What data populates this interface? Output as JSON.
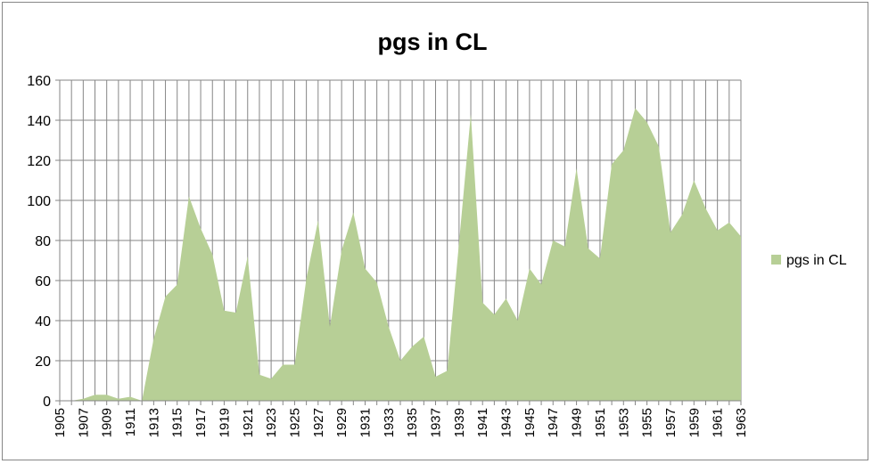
{
  "chart_data": {
    "type": "area",
    "title": "pgs in CL",
    "xlabel": "",
    "ylabel": "",
    "ylim": [
      0,
      160
    ],
    "yticks": [
      0,
      20,
      40,
      60,
      80,
      100,
      120,
      140,
      160
    ],
    "grid": true,
    "legend": "right",
    "x": [
      1905,
      1906,
      1907,
      1908,
      1909,
      1910,
      1911,
      1912,
      1913,
      1914,
      1915,
      1916,
      1917,
      1918,
      1919,
      1920,
      1921,
      1922,
      1923,
      1924,
      1925,
      1926,
      1927,
      1928,
      1929,
      1930,
      1931,
      1932,
      1933,
      1934,
      1935,
      1936,
      1937,
      1938,
      1939,
      1940,
      1941,
      1942,
      1943,
      1944,
      1945,
      1946,
      1947,
      1948,
      1949,
      1950,
      1951,
      1952,
      1953,
      1954,
      1955,
      1956,
      1957,
      1958,
      1959,
      1960,
      1961,
      1962,
      1963
    ],
    "xtick_labels": [
      "1905",
      "1907",
      "1909",
      "1911",
      "1913",
      "1915",
      "1917",
      "1919",
      "1921",
      "1923",
      "1925",
      "1927",
      "1929",
      "1931",
      "1933",
      "1935",
      "1937",
      "1939",
      "1941",
      "1943",
      "1945",
      "1947",
      "1949",
      "1951",
      "1953",
      "1955",
      "1957",
      "1959",
      "1961",
      "1963"
    ],
    "series": [
      {
        "name": "pgs in CL",
        "color": "#b7cf96",
        "values": [
          0,
          0,
          1,
          3,
          3,
          1,
          2,
          0,
          31,
          52,
          58,
          102,
          86,
          73,
          45,
          44,
          72,
          13,
          11,
          18,
          18,
          61,
          90,
          37,
          75,
          94,
          66,
          59,
          37,
          20,
          27,
          32,
          12,
          15,
          79,
          143,
          49,
          43,
          51,
          40,
          66,
          58,
          80,
          77,
          116,
          76,
          71,
          118,
          125,
          146,
          139,
          127,
          84,
          93,
          110,
          96,
          85,
          89,
          82
        ]
      }
    ],
    "colors": {
      "plot_border": "#868686",
      "gridline": "#868686",
      "axis": "#868686"
    }
  }
}
